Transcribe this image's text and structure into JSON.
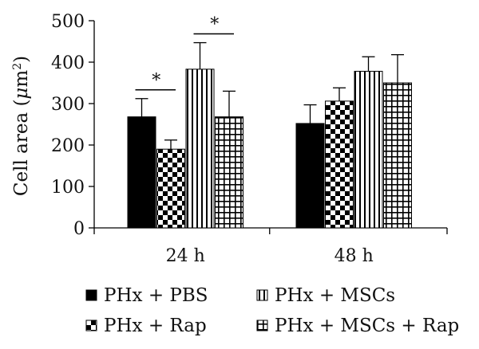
{
  "chart_data": {
    "type": "bar",
    "categories": [
      "24 h",
      "48 h"
    ],
    "ylabel": "Cell area (μm²)",
    "ylabel_parts": {
      "prefix": "Cell area (",
      "mu": "μ",
      "unit": "m",
      "sup": "2",
      "suffix": ")"
    },
    "ylim": [
      0,
      500
    ],
    "yticks": [
      0,
      100,
      200,
      300,
      400,
      500
    ],
    "grid": false,
    "legend_position": "bottom",
    "series": [
      {
        "name": "PHx + PBS",
        "pattern": "solid",
        "values": [
          268,
          252
        ],
        "errors": [
          44,
          45
        ]
      },
      {
        "name": "PHx + Rap",
        "pattern": "checker",
        "values": [
          190,
          306
        ],
        "errors": [
          22,
          32
        ]
      },
      {
        "name": "PHx + MSCs",
        "pattern": "vlines",
        "values": [
          383,
          378
        ],
        "errors": [
          64,
          35
        ]
      },
      {
        "name": "PHx + MSCs + Rap",
        "pattern": "grid",
        "values": [
          268,
          350
        ],
        "errors": [
          62,
          68
        ]
      }
    ],
    "significance": [
      {
        "category": "24 h",
        "between": [
          "PHx + PBS",
          "PHx + Rap"
        ],
        "label": "*"
      },
      {
        "category": "24 h",
        "between": [
          "PHx + MSCs",
          "PHx + MSCs + Rap"
        ],
        "label": "*"
      }
    ],
    "colors": {
      "bars": "#000000",
      "background": "#ffffff"
    }
  }
}
